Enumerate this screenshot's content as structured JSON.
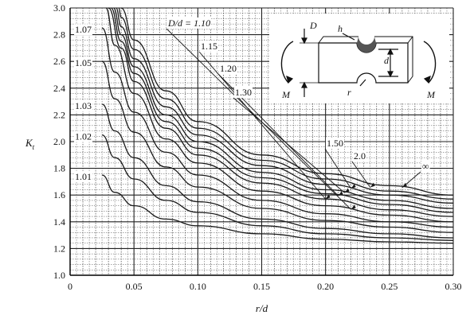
{
  "chart_data": {
    "type": "line",
    "xlabel": "r/d",
    "ylabel": "K",
    "ylabel_sub": "t",
    "xlim": [
      0,
      0.3
    ],
    "ylim": [
      1.0,
      3.0
    ],
    "x_ticks": [
      "0",
      "0.05",
      "0.10",
      "0.15",
      "0.20",
      "0.25",
      "0.30"
    ],
    "y_ticks": [
      "1.0",
      "1.2",
      "1.4",
      "1.6",
      "1.8",
      "2.0",
      "2.2",
      "2.4",
      "2.6",
      "2.8",
      "3.0"
    ],
    "grid": true,
    "series": [
      {
        "name": "D/d = 1.10",
        "label_text": "D/d = 1.10",
        "label_side": "right",
        "points": [
          [
            0.028,
            3.0
          ],
          [
            0.035,
            2.72
          ],
          [
            0.05,
            2.36
          ],
          [
            0.075,
            2.02
          ],
          [
            0.1,
            1.84
          ],
          [
            0.15,
            1.63
          ],
          [
            0.2,
            1.52
          ],
          [
            0.25,
            1.45
          ],
          [
            0.3,
            1.4
          ]
        ]
      },
      {
        "name": "1.15",
        "label_text": "1.15",
        "label_side": "right",
        "points": [
          [
            0.03,
            3.0
          ],
          [
            0.04,
            2.7
          ],
          [
            0.05,
            2.45
          ],
          [
            0.075,
            2.1
          ],
          [
            0.1,
            1.9
          ],
          [
            0.15,
            1.69
          ],
          [
            0.2,
            1.57
          ],
          [
            0.25,
            1.49
          ],
          [
            0.3,
            1.44
          ]
        ]
      },
      {
        "name": "1.20",
        "label_text": "1.20",
        "label_side": "right",
        "points": [
          [
            0.032,
            3.0
          ],
          [
            0.04,
            2.75
          ],
          [
            0.05,
            2.51
          ],
          [
            0.075,
            2.15
          ],
          [
            0.1,
            1.95
          ],
          [
            0.15,
            1.73
          ],
          [
            0.2,
            1.61
          ],
          [
            0.25,
            1.53
          ],
          [
            0.3,
            1.47
          ]
        ]
      },
      {
        "name": "1.30",
        "label_text": "1.30",
        "label_side": "right",
        "points": [
          [
            0.034,
            3.0
          ],
          [
            0.04,
            2.8
          ],
          [
            0.05,
            2.56
          ],
          [
            0.075,
            2.2
          ],
          [
            0.1,
            2.0
          ],
          [
            0.15,
            1.77
          ],
          [
            0.2,
            1.64
          ],
          [
            0.25,
            1.56
          ],
          [
            0.3,
            1.5
          ]
        ]
      },
      {
        "name": "1.50",
        "label_text": "1.50",
        "label_side": "right",
        "points": [
          [
            0.036,
            3.0
          ],
          [
            0.04,
            2.86
          ],
          [
            0.05,
            2.62
          ],
          [
            0.075,
            2.26
          ],
          [
            0.1,
            2.05
          ],
          [
            0.15,
            1.82
          ],
          [
            0.2,
            1.68
          ],
          [
            0.25,
            1.6
          ],
          [
            0.3,
            1.54
          ]
        ]
      },
      {
        "name": "2.0",
        "label_text": "2.0",
        "label_side": "right",
        "points": [
          [
            0.038,
            3.0
          ],
          [
            0.04,
            2.93
          ],
          [
            0.05,
            2.69
          ],
          [
            0.075,
            2.32
          ],
          [
            0.1,
            2.1
          ],
          [
            0.15,
            1.86
          ],
          [
            0.2,
            1.72
          ],
          [
            0.25,
            1.63
          ],
          [
            0.3,
            1.57
          ]
        ]
      },
      {
        "name": "∞",
        "label_text": "∞",
        "label_side": "right",
        "points": [
          [
            0.04,
            3.0
          ],
          [
            0.05,
            2.76
          ],
          [
            0.075,
            2.38
          ],
          [
            0.1,
            2.15
          ],
          [
            0.15,
            1.9
          ],
          [
            0.2,
            1.76
          ],
          [
            0.25,
            1.67
          ],
          [
            0.3,
            1.6
          ]
        ]
      },
      {
        "name": "1.07",
        "label_text": "1.07",
        "label_side": "left",
        "points": [
          [
            0.025,
            2.85
          ],
          [
            0.035,
            2.52
          ],
          [
            0.05,
            2.22
          ],
          [
            0.075,
            1.92
          ],
          [
            0.1,
            1.75
          ],
          [
            0.15,
            1.56
          ],
          [
            0.2,
            1.46
          ],
          [
            0.25,
            1.4
          ],
          [
            0.3,
            1.36
          ]
        ]
      },
      {
        "name": "1.05",
        "label_text": "1.05",
        "label_side": "left",
        "points": [
          [
            0.025,
            2.6
          ],
          [
            0.035,
            2.32
          ],
          [
            0.05,
            2.07
          ],
          [
            0.075,
            1.81
          ],
          [
            0.1,
            1.66
          ],
          [
            0.15,
            1.5
          ],
          [
            0.2,
            1.41
          ],
          [
            0.25,
            1.36
          ],
          [
            0.3,
            1.32
          ]
        ]
      },
      {
        "name": "1.03",
        "label_text": "1.03",
        "label_side": "left",
        "points": [
          [
            0.025,
            2.28
          ],
          [
            0.035,
            2.08
          ],
          [
            0.05,
            1.88
          ],
          [
            0.075,
            1.67
          ],
          [
            0.1,
            1.55
          ],
          [
            0.15,
            1.42
          ],
          [
            0.2,
            1.35
          ],
          [
            0.25,
            1.31
          ],
          [
            0.3,
            1.28
          ]
        ]
      },
      {
        "name": "1.02",
        "label_text": "1.02",
        "label_side": "left",
        "points": [
          [
            0.025,
            2.05
          ],
          [
            0.035,
            1.88
          ],
          [
            0.05,
            1.72
          ],
          [
            0.075,
            1.56
          ],
          [
            0.1,
            1.47
          ],
          [
            0.15,
            1.37
          ],
          [
            0.2,
            1.31
          ],
          [
            0.25,
            1.28
          ],
          [
            0.3,
            1.26
          ]
        ]
      },
      {
        "name": "1.01",
        "label_text": "1.01",
        "label_side": "left",
        "points": [
          [
            0.025,
            1.75
          ],
          [
            0.035,
            1.62
          ],
          [
            0.05,
            1.52
          ],
          [
            0.075,
            1.42
          ],
          [
            0.1,
            1.37
          ],
          [
            0.15,
            1.31
          ],
          [
            0.2,
            1.27
          ],
          [
            0.25,
            1.25
          ],
          [
            0.3,
            1.24
          ]
        ]
      }
    ],
    "inset_labels": [
      "D",
      "h",
      "d",
      "r",
      "M",
      "M"
    ],
    "colors": {
      "line": "#1a1a1a",
      "grid": "#222222",
      "background": "#ffffff"
    }
  }
}
